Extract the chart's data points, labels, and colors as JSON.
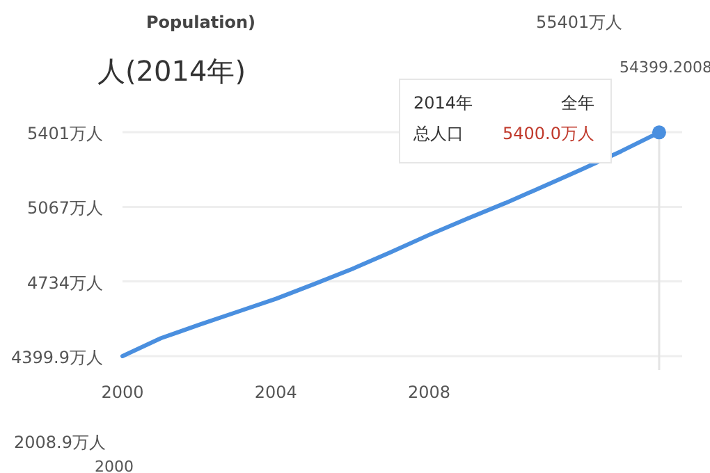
{
  "chart_data": {
    "type": "line",
    "title": "人(2014年)",
    "x": [
      2000,
      2001,
      2002,
      2003,
      2004,
      2005,
      2006,
      2007,
      2008,
      2009,
      2010,
      2011,
      2012,
      2013,
      2014
    ],
    "series": [
      {
        "color": "#4a8fdf",
        "values": [
          4400,
          4480,
          4540,
          4598,
          4656,
          4722,
          4790,
          4865,
          4942,
          5015,
          5085,
          5160,
          5236,
          5315,
          5400
        ]
      }
    ],
    "xlim": [
      2000,
      2014.6
    ],
    "xticks": [
      2000,
      2004,
      2008
    ],
    "ylim": [
      4399.9,
      5401
    ],
    "yticks": [
      {
        "value": 4399.9,
        "label": "4399.9万人"
      },
      {
        "value": 4734,
        "label": "4734万人"
      },
      {
        "value": 5067,
        "label": "5067万人"
      },
      {
        "value": 5401,
        "label": "5401万人"
      }
    ],
    "grid": "y",
    "marker": "none",
    "ref_lines": [
      {
        "axis": "x",
        "value": 2014,
        "color": "#e4e4e4"
      }
    ],
    "annotations": [
      "2014年",
      "全年",
      "总人口",
      "5400.0万人",
      "Population)",
      "55401万人",
      "54399.2008",
      "2008.9万人",
      "2000"
    ]
  }
}
